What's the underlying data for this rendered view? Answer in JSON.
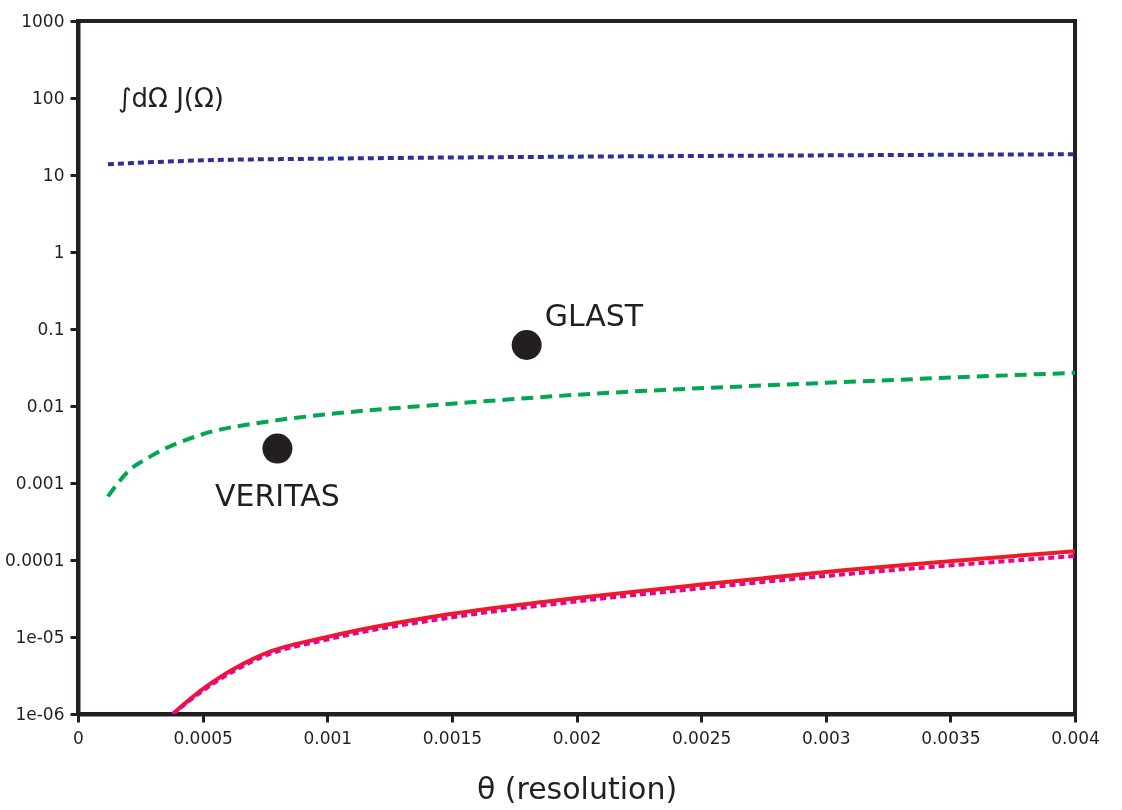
{
  "chart_data": {
    "type": "line",
    "xlabel": "θ (resolution)",
    "annotations": [
      "∫dΩ  J(Ω)"
    ],
    "xlim": [
      0,
      0.004
    ],
    "ylim": [
      1e-06,
      1000
    ],
    "log": "y",
    "grid": false,
    "xticks": [
      0,
      0.0005,
      0.001,
      0.0015,
      0.002,
      0.0025,
      0.003,
      0.0035,
      0.004
    ],
    "yticks": [
      1000,
      100,
      10,
      1,
      0.1,
      0.01,
      0.001,
      0.0001,
      {
        "value": 1e-05,
        "label": "1e-05"
      },
      {
        "value": 1e-06,
        "label": "1e-06"
      }
    ],
    "series": [
      {
        "color": "#2e3192",
        "line_style": "dotted",
        "x": [
          0.00012,
          0.0005,
          0.001,
          0.002,
          0.003,
          0.004
        ],
        "values": [
          13.8,
          15.5,
          16.3,
          17.3,
          18.0,
          18.6
        ]
      },
      {
        "color": "#00a651",
        "line_style": "dashed",
        "x": [
          0.00012,
          0.0002,
          0.0003,
          0.0005,
          0.00075,
          0.001,
          0.0015,
          0.002,
          0.003,
          0.004
        ],
        "values": [
          0.00067,
          0.0014,
          0.0023,
          0.0043,
          0.0062,
          0.0078,
          0.0107,
          0.014,
          0.02,
          0.027
        ]
      },
      {
        "color": "#ed1c24",
        "line_style": "solid",
        "x": [
          0.00038,
          0.0005,
          0.00075,
          0.001,
          0.0015,
          0.002,
          0.0025,
          0.003,
          0.004
        ],
        "values": [
          1e-06,
          2.1e-06,
          6.1e-06,
          1e-05,
          2e-05,
          3.2e-05,
          4.8e-05,
          7e-05,
          0.00013
        ]
      },
      {
        "color": "#ec008c",
        "line_style": "dotted",
        "x": [
          0.00038,
          0.0005,
          0.00075,
          0.001,
          0.0015,
          0.002,
          0.0025,
          0.003,
          0.004
        ],
        "values": [
          1e-06,
          2e-06,
          5.7e-06,
          9.3e-06,
          1.8e-05,
          2.9e-05,
          4.3e-05,
          6.2e-05,
          0.000113
        ]
      },
      {
        "type": "scatter",
        "name": "GLAST",
        "color": "#231f20",
        "marker": "circle",
        "x": [
          0.0018
        ],
        "values": [
          0.062
        ]
      },
      {
        "type": "scatter",
        "name": "VERITAS",
        "color": "#231f20",
        "marker": "circle",
        "x": [
          0.0008
        ],
        "values": [
          0.0028
        ]
      }
    ]
  }
}
